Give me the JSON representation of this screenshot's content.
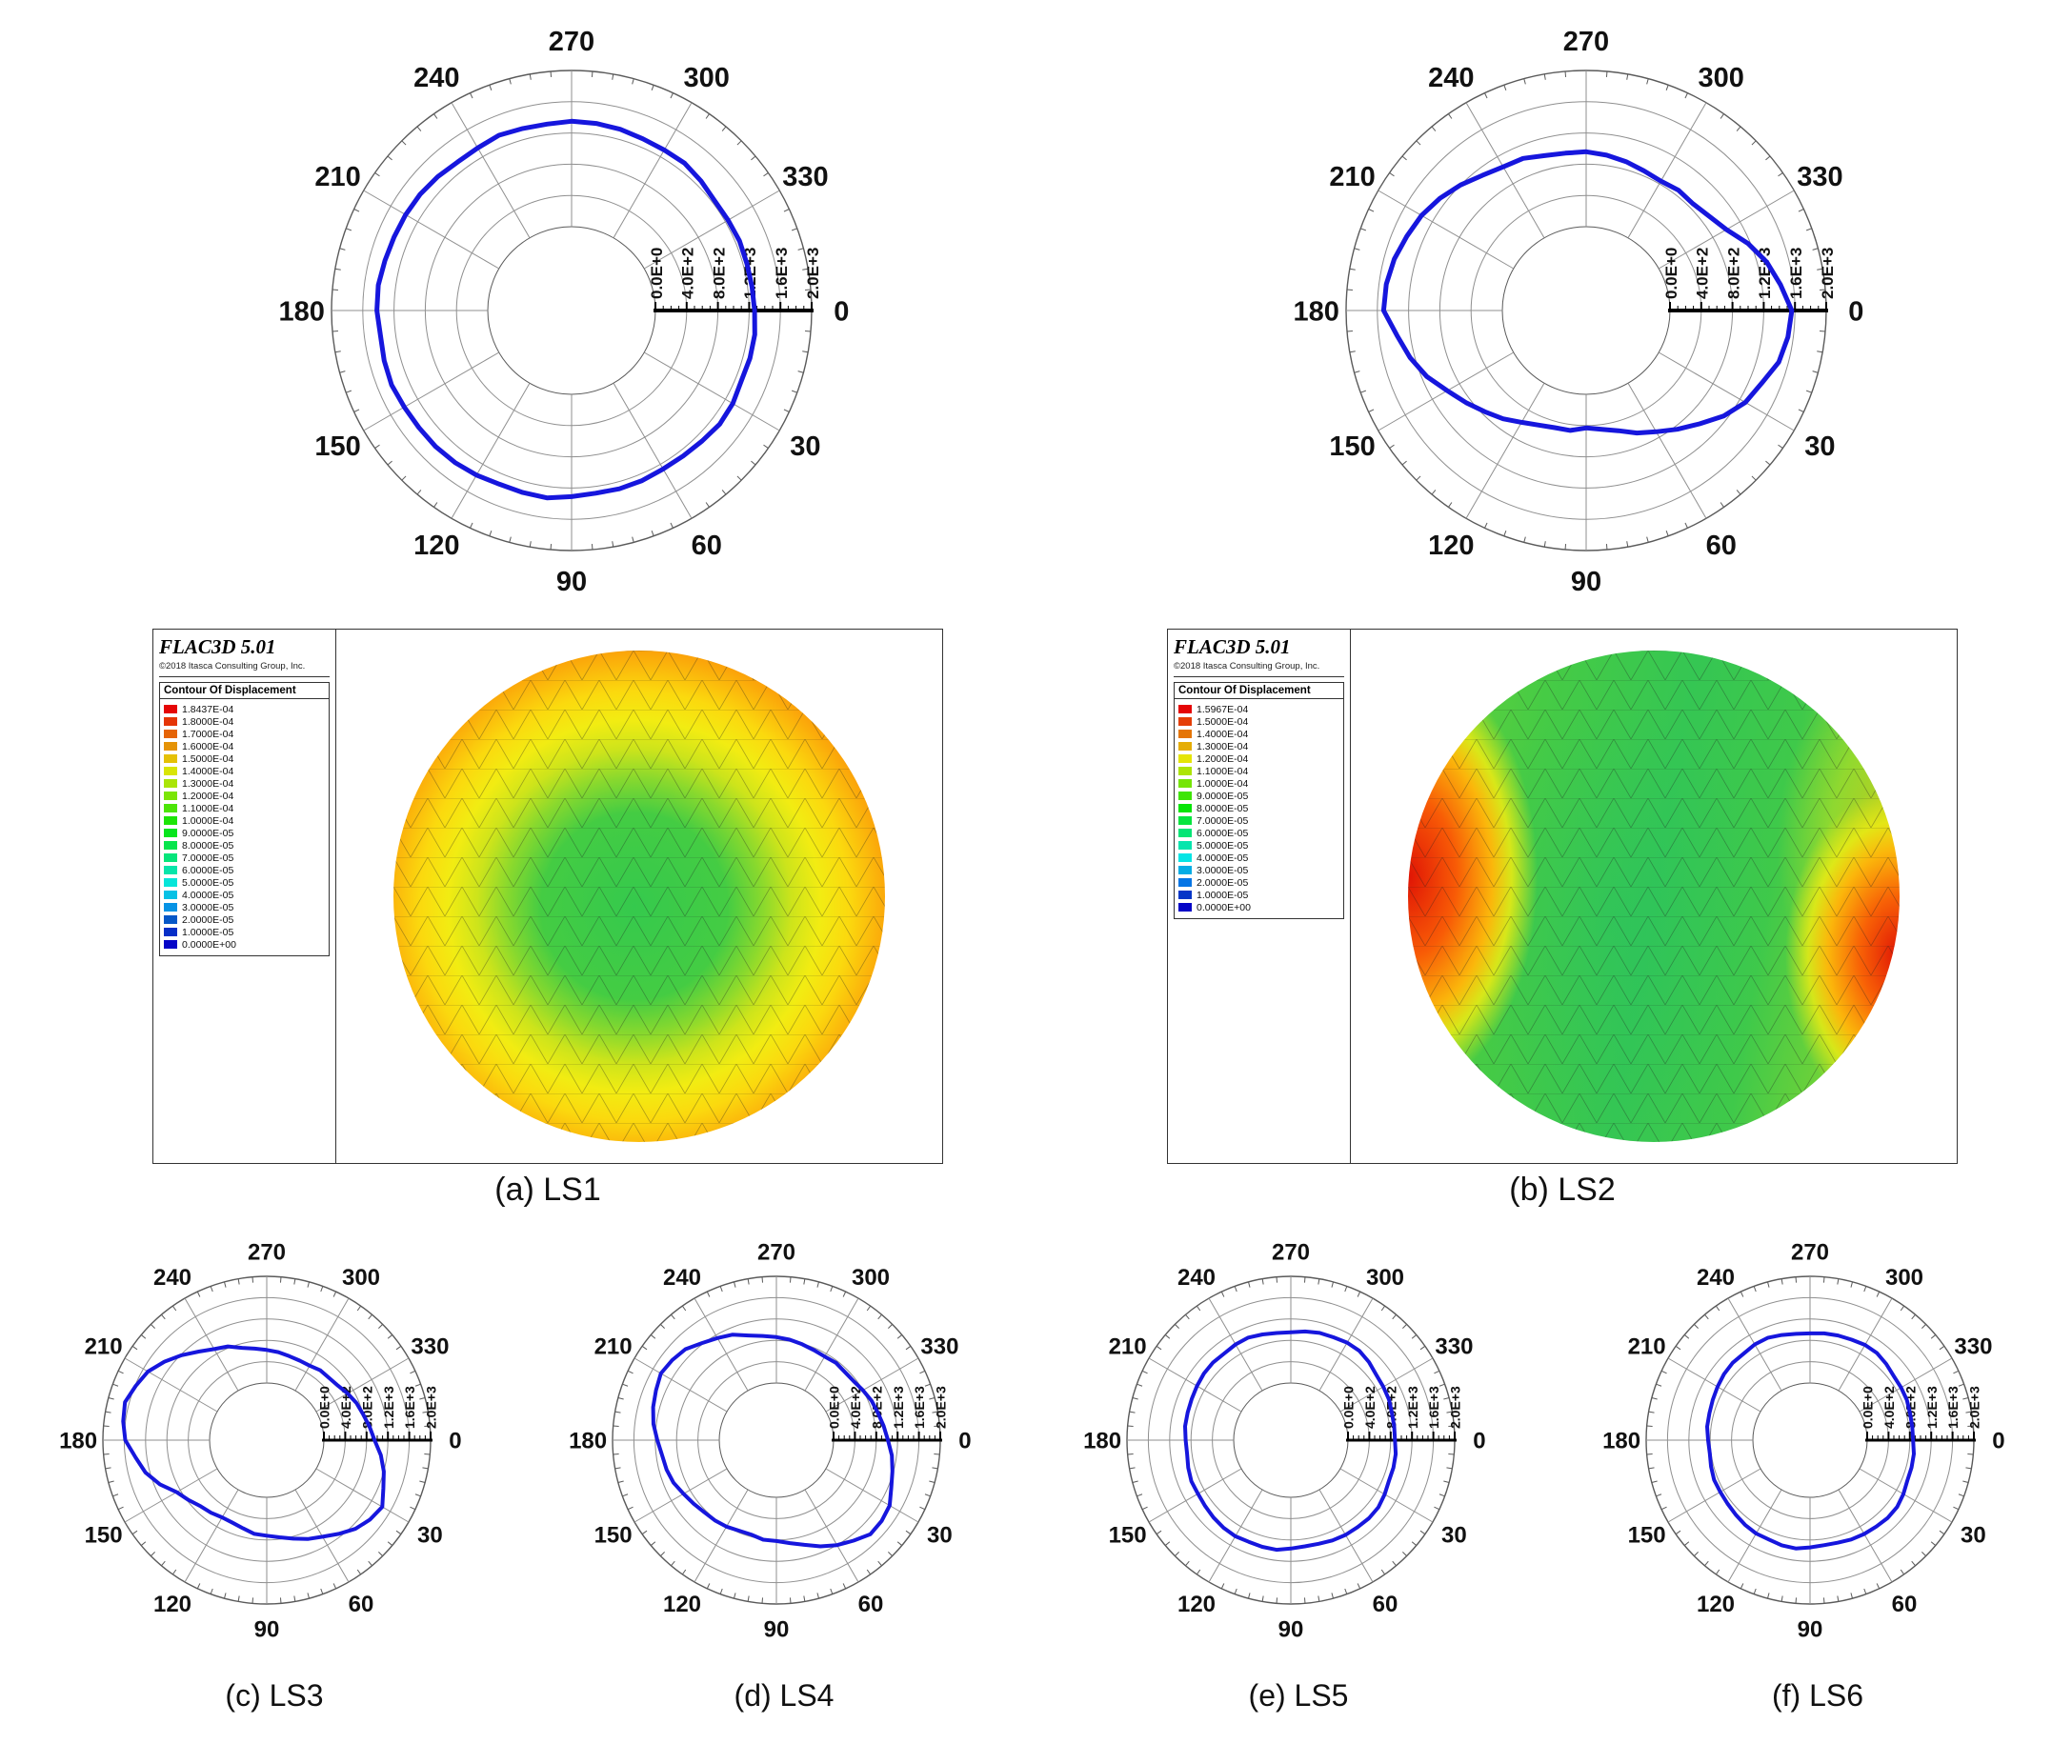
{
  "page": {
    "background": "#ffffff"
  },
  "polar_axis": {
    "rmax": 2000,
    "ring_step": 400,
    "radial_tick_labels": [
      "0.0E+0",
      "4.0E+2",
      "8.0E+2",
      "1.2E+3",
      "1.6E+3",
      "2.0E+3"
    ],
    "angle_labels": [
      "0",
      "30",
      "60",
      "90",
      "120",
      "150",
      "180",
      "210",
      "240",
      "270",
      "300",
      "330"
    ],
    "angle_direction": "clockwise-from-east",
    "curve_color": "#1616dd",
    "grid_color": "#8f8f8f"
  },
  "chart_data": [
    {
      "id": "ls1",
      "type": "polar-line",
      "caption": "(a) LS1",
      "size": "large",
      "rlim": [
        0,
        2000
      ],
      "angle_unit": "deg",
      "angles": [
        0,
        15,
        30,
        45,
        60,
        75,
        90,
        105,
        120,
        135,
        150,
        165,
        180,
        195,
        210,
        225,
        240,
        255,
        270,
        285,
        300,
        315,
        330,
        345
      ],
      "values": [
        1270,
        1290,
        1310,
        1290,
        1270,
        1290,
        1310,
        1340,
        1360,
        1390,
        1400,
        1410,
        1420,
        1400,
        1380,
        1350,
        1330,
        1340,
        1350,
        1330,
        1300,
        1270,
        1240,
        1250
      ]
    },
    {
      "id": "ls2",
      "type": "polar-line",
      "caption": "(b) LS2",
      "size": "large",
      "rlim": [
        0,
        2000
      ],
      "angle_unit": "deg",
      "angles": [
        0,
        15,
        30,
        45,
        60,
        75,
        90,
        105,
        120,
        135,
        150,
        165,
        180,
        195,
        210,
        225,
        240,
        255,
        270,
        285,
        300,
        315,
        330,
        345
      ],
      "values": [
        1560,
        1480,
        1280,
        980,
        720,
        520,
        430,
        480,
        580,
        760,
        980,
        1260,
        1520,
        1470,
        1360,
        1200,
        1050,
        980,
        960,
        900,
        840,
        860,
        1000,
        1320
      ]
    },
    {
      "id": "ls3",
      "type": "polar-line",
      "caption": "(c) LS3",
      "size": "small",
      "rlim": [
        0,
        2000
      ],
      "angle_unit": "deg",
      "angles": [
        0,
        15,
        30,
        45,
        60,
        75,
        90,
        105,
        120,
        135,
        150,
        165,
        180,
        195,
        210,
        225,
        240,
        255,
        270,
        285,
        300,
        315,
        330,
        345
      ],
      "values": [
        950,
        1200,
        1430,
        1280,
        1020,
        840,
        720,
        640,
        600,
        680,
        880,
        1280,
        1580,
        1680,
        1500,
        1180,
        900,
        720,
        620,
        560,
        540,
        580,
        680,
        800
      ]
    },
    {
      "id": "ls4",
      "type": "polar-line",
      "caption": "(d) LS4",
      "size": "small",
      "rlim": [
        0,
        2000
      ],
      "angle_unit": "deg",
      "angles": [
        0,
        15,
        30,
        45,
        60,
        75,
        90,
        105,
        120,
        135,
        150,
        165,
        180,
        195,
        210,
        225,
        240,
        255,
        270,
        285,
        300,
        315,
        330,
        345
      ],
      "values": [
        1020,
        1180,
        1380,
        1420,
        1200,
        960,
        820,
        760,
        800,
        840,
        940,
        1060,
        1160,
        1320,
        1430,
        1340,
        1140,
        960,
        860,
        790,
        740,
        740,
        800,
        900
      ]
    },
    {
      "id": "ls5",
      "type": "polar-line",
      "caption": "(e) LS5",
      "size": "small",
      "rlim": [
        0,
        2000
      ],
      "angle_unit": "deg",
      "angles": [
        0,
        15,
        30,
        45,
        60,
        75,
        90,
        105,
        120,
        135,
        150,
        165,
        180,
        195,
        210,
        225,
        240,
        255,
        270,
        285,
        300,
        315,
        330,
        345
      ],
      "values": [
        880,
        920,
        960,
        1000,
        980,
        940,
        960,
        1000,
        1010,
        980,
        940,
        920,
        900,
        930,
        960,
        990,
        1000,
        980,
        950,
        1010,
        1040,
        1000,
        930,
        890
      ]
    },
    {
      "id": "ls6",
      "type": "polar-line",
      "caption": "(f) LS6",
      "size": "small",
      "rlim": [
        0,
        2000
      ],
      "angle_unit": "deg",
      "angles": [
        0,
        15,
        30,
        45,
        60,
        75,
        90,
        105,
        120,
        135,
        150,
        165,
        180,
        195,
        210,
        225,
        240,
        255,
        270,
        285,
        300,
        315,
        330,
        345
      ],
      "values": [
        860,
        900,
        950,
        990,
        960,
        920,
        940,
        970,
        950,
        900,
        870,
        850,
        840,
        880,
        930,
        980,
        1000,
        970,
        930,
        960,
        990,
        950,
        900,
        870
      ]
    }
  ],
  "flac_panels": [
    {
      "id": "ls1",
      "app_title": "FLAC3D 5.01",
      "copyright": "©2018 Itasca Consulting Group, Inc.",
      "legend_title": "Contour Of Displacement",
      "contour_style": "concentric",
      "legend_values": [
        "1.8437E-04",
        "1.8000E-04",
        "1.7000E-04",
        "1.6000E-04",
        "1.5000E-04",
        "1.4000E-04",
        "1.3000E-04",
        "1.2000E-04",
        "1.1000E-04",
        "1.0000E-04",
        "9.0000E-05",
        "8.0000E-05",
        "7.0000E-05",
        "6.0000E-05",
        "5.0000E-05",
        "4.0000E-05",
        "3.0000E-05",
        "2.0000E-05",
        "1.0000E-05",
        "0.0000E+00"
      ]
    },
    {
      "id": "ls2",
      "app_title": "FLAC3D 5.01",
      "copyright": "©2018 Itasca Consulting Group, Inc.",
      "legend_title": "Contour Of Displacement",
      "contour_style": "bands",
      "legend_values": [
        "1.5967E-04",
        "1.5000E-04",
        "1.4000E-04",
        "1.3000E-04",
        "1.2000E-04",
        "1.1000E-04",
        "1.0000E-04",
        "9.0000E-05",
        "8.0000E-05",
        "7.0000E-05",
        "6.0000E-05",
        "5.0000E-05",
        "4.0000E-05",
        "3.0000E-05",
        "2.0000E-05",
        "1.0000E-05",
        "0.0000E+00"
      ]
    }
  ]
}
